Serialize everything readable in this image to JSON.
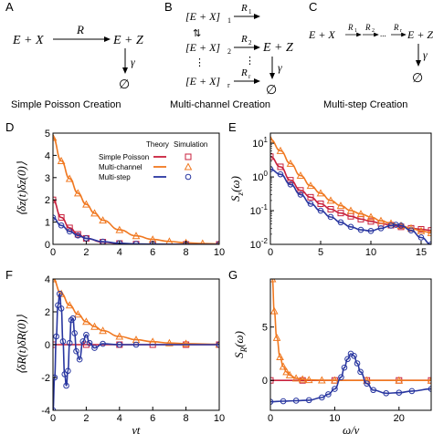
{
  "panel_letters": {
    "A": "A",
    "B": "B",
    "C": "C",
    "D": "D",
    "E": "E",
    "F": "F",
    "G": "G"
  },
  "schemes": {
    "A": {
      "left": "E + X",
      "rate": "R",
      "right": "E + Z",
      "decay": "γ",
      "empty": "∅",
      "caption": "Simple Poisson Creation"
    },
    "B": {
      "states": [
        "[E + X]",
        "[E + X]",
        "[E + X]"
      ],
      "state_subs": [
        "1",
        "2",
        "r"
      ],
      "state_dots": "⋮",
      "equiv": "⇅",
      "rates": [
        "R",
        "R",
        "R"
      ],
      "rate_subs": [
        "1",
        "2",
        "r"
      ],
      "rate_dots": "⋮",
      "right": "E + Z",
      "decay": "γ",
      "empty": "∅",
      "caption": "Multi-channel Creation"
    },
    "C": {
      "left": "E + X",
      "rates": [
        "R",
        "R",
        "R"
      ],
      "rate_subs": [
        "1",
        "2",
        "r"
      ],
      "dots": "...",
      "right": "E + Z",
      "decay": "γ",
      "empty": "∅",
      "caption": "Multi-step Creation"
    }
  },
  "legend": {
    "header_theory": "Theory",
    "header_simulation": "Simulation",
    "entries": [
      {
        "label": "Simple Poisson",
        "color": "#c8203c",
        "marker": "square"
      },
      {
        "label": "Multi-channel",
        "color": "#f07820",
        "marker": "triangle"
      },
      {
        "label": "Multi-step",
        "color": "#2836a0",
        "marker": "circle"
      }
    ]
  },
  "colors": {
    "simple": "#c8203c",
    "multichannel": "#f07820",
    "multistep": "#2836a0"
  },
  "chart_data": [
    {
      "id": "D",
      "type": "line",
      "ylabel": "⟨δz(t)δz(0)⟩",
      "xlabel": "",
      "xlim": [
        0,
        10
      ],
      "ylim": [
        0,
        5
      ],
      "xticks": [
        "0",
        "2",
        "4",
        "6",
        "8",
        "10"
      ],
      "yticks": [
        "0",
        "1",
        "2",
        "3",
        "4",
        "5"
      ],
      "series": [
        {
          "name": "Simple Poisson",
          "x": [
            0,
            0.5,
            1,
            1.5,
            2,
            3,
            4,
            5,
            6,
            8,
            10
          ],
          "y": [
            2.0,
            1.21,
            0.74,
            0.45,
            0.27,
            0.1,
            0.04,
            0.01,
            0.0,
            0.0,
            0.0
          ]
        },
        {
          "name": "Multi-channel",
          "x": [
            0,
            0.5,
            1,
            1.5,
            2,
            2.5,
            3,
            4,
            5,
            6,
            7,
            8,
            9,
            10
          ],
          "y": [
            4.8,
            3.75,
            2.95,
            2.3,
            1.8,
            1.4,
            1.08,
            0.65,
            0.38,
            0.22,
            0.13,
            0.07,
            0.04,
            0.02
          ]
        },
        {
          "name": "Multi-step",
          "x": [
            0,
            0.5,
            1,
            1.5,
            2,
            3,
            4,
            5,
            6,
            8,
            10
          ],
          "y": [
            1.2,
            0.85,
            0.58,
            0.4,
            0.27,
            0.12,
            0.05,
            0.02,
            0.01,
            0.0,
            0.0
          ]
        }
      ]
    },
    {
      "id": "E",
      "type": "line",
      "ylabel": "S_z(ω)",
      "xlabel": "",
      "xlim": [
        0,
        16
      ],
      "ylim": [
        0.01,
        20
      ],
      "yscale": "log",
      "xticks": [
        "0",
        "5",
        "10",
        "15"
      ],
      "yticks": [
        "10^-2",
        "10^-1",
        "10^0",
        "10^1"
      ],
      "series": [
        {
          "name": "Simple Poisson",
          "x": [
            0,
            1,
            2,
            3,
            4,
            5,
            6,
            7,
            8,
            9,
            10,
            11,
            12,
            13,
            14,
            15,
            16
          ],
          "y": [
            4.0,
            2.0,
            0.8,
            0.4,
            0.25,
            0.16,
            0.11,
            0.085,
            0.068,
            0.056,
            0.048,
            0.042,
            0.037,
            0.033,
            0.03,
            0.028,
            0.026
          ]
        },
        {
          "name": "Multi-channel",
          "x": [
            0,
            1,
            2,
            3,
            4,
            5,
            6,
            7,
            8,
            9,
            10,
            11,
            12,
            13,
            14,
            15,
            16
          ],
          "y": [
            13.0,
            6.0,
            2.5,
            1.1,
            0.55,
            0.33,
            0.2,
            0.14,
            0.1,
            0.08,
            0.065,
            0.05,
            0.042,
            0.036,
            0.03,
            0.025,
            0.022
          ]
        },
        {
          "name": "Multi-step",
          "x": [
            0,
            1,
            2,
            3,
            4,
            5,
            6,
            7,
            8,
            9,
            10,
            11,
            12,
            12.5,
            13,
            14,
            15,
            16
          ],
          "y": [
            1.7,
            1.2,
            0.6,
            0.3,
            0.16,
            0.1,
            0.065,
            0.045,
            0.033,
            0.027,
            0.025,
            0.03,
            0.036,
            0.038,
            0.036,
            0.026,
            0.016,
            0.01
          ]
        }
      ]
    },
    {
      "id": "F",
      "type": "line",
      "ylabel": "⟨δR(t)δR(0)⟩",
      "xlabel": "γt",
      "xlim": [
        0,
        10
      ],
      "ylim": [
        -4,
        4
      ],
      "xticks": [
        "0",
        "2",
        "4",
        "6",
        "8",
        "10"
      ],
      "yticks": [
        "-4",
        "-2",
        "0",
        "2",
        "4"
      ],
      "series": [
        {
          "name": "Simple Poisson",
          "x": [
            0,
            2,
            4,
            6,
            8,
            10
          ],
          "y": [
            0,
            0,
            0,
            0,
            0,
            0
          ]
        },
        {
          "name": "Multi-channel",
          "x": [
            0,
            0.5,
            1,
            1.5,
            2,
            2.5,
            3,
            4,
            5,
            6,
            7,
            8,
            10
          ],
          "y": [
            4.0,
            3.1,
            2.4,
            1.85,
            1.4,
            1.1,
            0.85,
            0.5,
            0.3,
            0.18,
            0.1,
            0.06,
            0.02
          ]
        },
        {
          "name": "Multi-step",
          "x": [
            0,
            0.1,
            0.2,
            0.3,
            0.4,
            0.5,
            0.6,
            0.7,
            0.8,
            0.9,
            1.0,
            1.1,
            1.2,
            1.3,
            1.4,
            1.6,
            1.8,
            2.0,
            2.2,
            2.5,
            3,
            4,
            5,
            10
          ],
          "y": [
            -4.0,
            -2.0,
            0.5,
            2.4,
            3.1,
            2.2,
            0.2,
            -1.8,
            -2.5,
            -1.6,
            0.1,
            1.5,
            1.6,
            0.7,
            -0.4,
            -0.9,
            0.2,
            0.6,
            0.1,
            -0.2,
            0.05,
            0,
            0,
            0
          ]
        }
      ]
    },
    {
      "id": "G",
      "type": "line",
      "ylabel": "S_R(ω)",
      "xlabel": "ω/γ",
      "xlim": [
        0,
        25
      ],
      "ylim": [
        -2.8,
        9.5
      ],
      "xticks": [
        "0",
        "10",
        "20"
      ],
      "yticks": [
        "0",
        "5"
      ],
      "series": [
        {
          "name": "Simple Poisson",
          "x": [
            0,
            5,
            10,
            15,
            20,
            25
          ],
          "y": [
            0,
            0,
            0,
            0,
            0,
            0
          ]
        },
        {
          "name": "Multi-channel",
          "x": [
            0.3,
            0.6,
            1,
            1.5,
            2,
            2.5,
            3,
            4,
            5,
            6,
            8,
            10,
            15,
            20,
            25
          ],
          "y": [
            9.5,
            6.5,
            4.0,
            2.2,
            1.3,
            0.8,
            0.5,
            0.2,
            0.1,
            0.05,
            0.02,
            0.01,
            0,
            0,
            0
          ]
        },
        {
          "name": "Multi-step",
          "x": [
            0,
            2,
            4,
            6,
            8,
            9,
            10,
            11,
            11.5,
            12,
            12.5,
            13,
            13.5,
            14,
            15,
            16,
            18,
            20,
            22,
            25
          ],
          "y": [
            -2.0,
            -1.95,
            -1.9,
            -1.85,
            -1.6,
            -1.3,
            -0.8,
            0.3,
            1.2,
            2.0,
            2.5,
            2.3,
            1.6,
            0.8,
            -0.3,
            -0.9,
            -1.2,
            -1.15,
            -1.0,
            -0.8
          ]
        }
      ]
    }
  ]
}
